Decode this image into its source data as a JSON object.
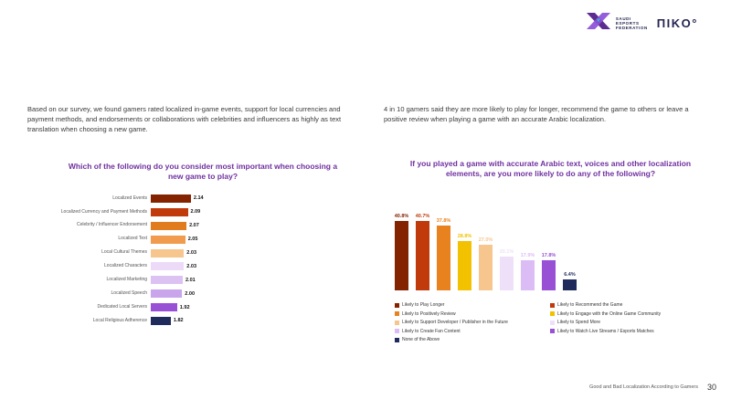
{
  "logos": {
    "sef": {
      "line1": "SAUDI",
      "line2": "ESPORTS",
      "line3": "FEDERATION"
    },
    "niko": "ΠIKO°"
  },
  "intro": {
    "left": "Based on our survey, we found gamers rated localized in-game events, support for local currencies and payment methods, and endorsements or collaborations with celebrities and influencers as highly as text translation when choosing a new game.",
    "right": "4 in 10 gamers said they are more likely to play for longer, recommend the game to others or leave a positive review when playing a game with an accurate Arabic localization."
  },
  "chart_data": [
    {
      "type": "bar",
      "orientation": "horizontal",
      "title": "Which of the following do you consider most important when choosing a new game to play?",
      "categories": [
        "Localized Events",
        "Localized Currency and Payment Methods",
        "Celebrity / Influencer Endorsement",
        "Localized Text",
        "Local Cultural Themes",
        "Localized Characters",
        "Localized Marketing",
        "Localized Speech",
        "Dedicated Local Servers",
        "Local Religious Adherence"
      ],
      "values": [
        2.14,
        2.09,
        2.07,
        2.05,
        2.03,
        2.03,
        2.01,
        2.0,
        1.92,
        1.82
      ],
      "colors": [
        "#832300",
        "#c03a0b",
        "#e07c1e",
        "#f09b4e",
        "#f7c68f",
        "#ecdaf8",
        "#dcc2f2",
        "#c9a5ec",
        "#9850d4",
        "#1f2b5b"
      ],
      "xlim": [
        1.5,
        2.2
      ],
      "value_format": "2dp",
      "grid": false,
      "legend": "none"
    },
    {
      "type": "bar",
      "orientation": "vertical",
      "title": "If you played a game with accurate Arabic text, voices and other localization elements, are you more likely to do any of the following?",
      "categories": [
        "Likely to Play Longer",
        "Likely to Recommend the Game",
        "Likely to Positively Review",
        "Likely to Engage with the Online Game Community",
        "Likely to Support Developer / Publisher in the Future",
        "Likely to Spend More",
        "Likely to Create Fan Content",
        "Likely to Watch Live Streams / Esports Matches",
        "None of the Above"
      ],
      "values": [
        40.8,
        40.7,
        37.8,
        28.8,
        27.0,
        20.1,
        17.9,
        17.8,
        6.4
      ],
      "colors": [
        "#832300",
        "#c03a0b",
        "#e8821e",
        "#f2c100",
        "#f7c68f",
        "#efe0fa",
        "#dbbcf5",
        "#9850d4",
        "#1f2b5b"
      ],
      "ylim": [
        0,
        45
      ],
      "value_format": "percent-1dp",
      "grid": false,
      "legend": "bottom-two-columns",
      "legend_columns": [
        [
          0,
          2,
          4,
          6,
          8
        ],
        [
          1,
          3,
          5,
          7
        ]
      ]
    }
  ],
  "footer": {
    "title": "Good and Bad Localization According to Gamers",
    "page_number": "30"
  }
}
